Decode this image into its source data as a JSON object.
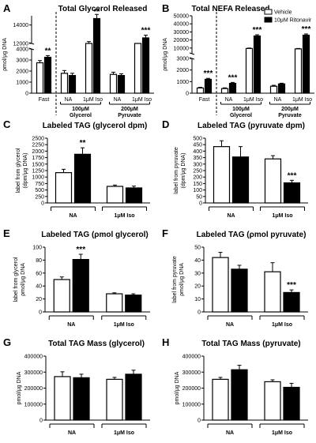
{
  "colors": {
    "vehicle": "#ffffff",
    "ritonavir": "#000000",
    "stroke": "#000000"
  },
  "legend": [
    "Vehicle",
    "10μM Ritonavir"
  ],
  "chart_data": [
    {
      "letter": "A",
      "type": "bar",
      "title": "Total Glycerol Released",
      "ylabel": "ρmol/μg DNA",
      "axis_break": true,
      "yticks": [
        "0",
        "1000",
        "2000",
        "3000",
        "4000",
        "12000",
        "14000"
      ],
      "categories": [
        "Fast",
        "NA",
        "1μM Iso",
        "NA",
        "1μM Iso"
      ],
      "groups": [
        {
          "label": "100μM",
          "sub": "Glycerol"
        },
        {
          "label": "200μM",
          "sub": "Pyruvate"
        }
      ],
      "series": [
        {
          "name": "Vehicle",
          "values": [
            2750,
            1800,
            11800,
            1700,
            10400
          ],
          "errors": [
            200,
            250,
            400,
            200,
            300
          ]
        },
        {
          "name": "10μM Ritonavir",
          "values": [
            3250,
            1600,
            14700,
            1600,
            12600
          ],
          "errors": [
            150,
            200,
            500,
            150,
            300
          ]
        }
      ],
      "significance": [
        "**",
        "",
        "**",
        "",
        "***"
      ]
    },
    {
      "letter": "B",
      "type": "bar",
      "title": "Total NEFA Released",
      "ylabel": "ρmol/μg DNA",
      "axis_break": true,
      "yticks": [
        "0",
        "1000",
        "2000",
        "3000",
        "10000",
        "20000",
        "30000",
        "40000",
        "50000"
      ],
      "categories": [
        "Fast",
        "NA",
        "1μM Iso",
        "NA",
        "1μM Iso"
      ],
      "groups": [
        {
          "label": "100μM",
          "sub": "Glycerol"
        },
        {
          "label": "200μM",
          "sub": "Pyruvate"
        }
      ],
      "series": [
        {
          "name": "Vehicle",
          "values": [
            450,
            400,
            9500,
            600,
            9000
          ],
          "errors": [
            60,
            60,
            500,
            80,
            500
          ]
        },
        {
          "name": "10μM Ritonavir",
          "values": [
            1200,
            850,
            25000,
            800,
            26000
          ],
          "errors": [
            80,
            80,
            1500,
            60,
            1500
          ]
        }
      ],
      "significance": [
        "***",
        "***",
        "***",
        "",
        "***"
      ]
    },
    {
      "letter": "C",
      "type": "bar",
      "title": "Labeled TAG (glycerol dpm)",
      "ylabel": "label from glycerol",
      "ylabel2": "(dpm/μg DNA)",
      "ylim": [
        0,
        2500
      ],
      "yticks": [
        "0",
        "250",
        "500",
        "750",
        "1000",
        "1250",
        "1500",
        "1750",
        "2000",
        "2250",
        "2500"
      ],
      "categories": [
        "NA",
        "1μM Iso"
      ],
      "series": [
        {
          "name": "Vehicle",
          "values": [
            1170,
            640
          ],
          "errors": [
            130,
            50
          ]
        },
        {
          "name": "10μM Ritonavir",
          "values": [
            1880,
            580
          ],
          "errors": [
            250,
            70
          ]
        }
      ],
      "significance": [
        "**",
        ""
      ]
    },
    {
      "letter": "D",
      "type": "bar",
      "title": "Labeled TAG (pyruvate dpm)",
      "ylabel": "label from pyruvate",
      "ylabel2": "(dpm/μg DNA)",
      "ylim": [
        0,
        500
      ],
      "yticks": [
        "0",
        "50",
        "100",
        "150",
        "200",
        "250",
        "300",
        "350",
        "400",
        "450",
        "500"
      ],
      "categories": [
        "NA",
        "1μM Iso"
      ],
      "series": [
        {
          "name": "Vehicle",
          "values": [
            435,
            340
          ],
          "errors": [
            45,
            25
          ]
        },
        {
          "name": "10μM Ritonavir",
          "values": [
            355,
            155
          ],
          "errors": [
            80,
            20
          ]
        }
      ],
      "significance": [
        "",
        "***"
      ]
    },
    {
      "letter": "E",
      "type": "bar",
      "title": "Labeled TAG (ρmol glycerol)",
      "ylabel": "label from glycerol",
      "ylabel2": "ρmol/μg DNA",
      "ylim": [
        0,
        100
      ],
      "yticks": [
        "0",
        "20",
        "40",
        "60",
        "80",
        "100"
      ],
      "categories": [
        "NA",
        "1μM Iso"
      ],
      "series": [
        {
          "name": "Vehicle",
          "values": [
            50,
            28
          ],
          "errors": [
            4,
            1.5
          ]
        },
        {
          "name": "10μM Ritonavir",
          "values": [
            81,
            26
          ],
          "errors": [
            8,
            2
          ]
        }
      ],
      "significance": [
        "***",
        ""
      ]
    },
    {
      "letter": "F",
      "type": "bar",
      "title": "Labeled TAG (ρmol pyruvate)",
      "ylabel": "label from pyruvate",
      "ylabel2": "ρmol/μg DNA",
      "ylim": [
        0,
        50
      ],
      "yticks": [
        "0",
        "10",
        "20",
        "30",
        "40",
        "50"
      ],
      "categories": [
        "NA",
        "1μM Iso"
      ],
      "series": [
        {
          "name": "Vehicle",
          "values": [
            42,
            31
          ],
          "errors": [
            4,
            7
          ]
        },
        {
          "name": "10μM Ritonavir",
          "values": [
            33,
            15
          ],
          "errors": [
            3,
            2
          ]
        }
      ],
      "significance": [
        "",
        "***"
      ]
    },
    {
      "letter": "G",
      "type": "bar",
      "title": "Total TAG Mass (glycerol)",
      "ylabel": "pmol/μg DNA",
      "ylim": [
        0,
        400000
      ],
      "yticks": [
        "0",
        "100000",
        "200000",
        "300000",
        "400000"
      ],
      "categories": [
        "NA",
        "1μM Iso"
      ],
      "series": [
        {
          "name": "Vehicle",
          "values": [
            272000,
            255000
          ],
          "errors": [
            30000,
            12000
          ]
        },
        {
          "name": "10μM Ritonavir",
          "values": [
            265000,
            287000
          ],
          "errors": [
            22000,
            25000
          ]
        }
      ],
      "significance": [
        "",
        ""
      ]
    },
    {
      "letter": "H",
      "type": "bar",
      "title": "Total TAG Mass (pyruvate)",
      "ylabel": "pmol/μg DNA",
      "ylim": [
        0,
        400000
      ],
      "yticks": [
        "0",
        "100000",
        "200000",
        "300000",
        "400000"
      ],
      "categories": [
        "NA",
        "1μM Iso"
      ],
      "series": [
        {
          "name": "Vehicle",
          "values": [
            255000,
            240000
          ],
          "errors": [
            12000,
            12000
          ]
        },
        {
          "name": "10μM Ritonavir",
          "values": [
            315000,
            205000
          ],
          "errors": [
            28000,
            25000
          ]
        }
      ],
      "significance": [
        "",
        ""
      ]
    }
  ]
}
